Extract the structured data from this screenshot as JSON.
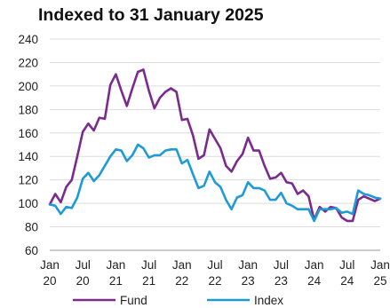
{
  "chart_data": {
    "type": "line",
    "title": "Indexed to 31 January 2025",
    "xlabel": "",
    "ylabel": "",
    "ylim": [
      60,
      240
    ],
    "yticks": [
      60,
      80,
      100,
      120,
      140,
      160,
      180,
      200,
      220,
      240
    ],
    "xlim": [
      "Jan 20",
      "Jan 25"
    ],
    "x_tick_labels": [
      {
        "top": "Jan",
        "bottom": "20"
      },
      {
        "top": "Jul",
        "bottom": "20"
      },
      {
        "top": "Jan",
        "bottom": "21"
      },
      {
        "top": "Jul",
        "bottom": "21"
      },
      {
        "top": "Jan",
        "bottom": "22"
      },
      {
        "top": "Jul",
        "bottom": "22"
      },
      {
        "top": "Jan",
        "bottom": "23"
      },
      {
        "top": "Jul",
        "bottom": "23"
      },
      {
        "top": "Jan",
        "bottom": "24"
      },
      {
        "top": "Jul",
        "bottom": "24"
      },
      {
        "top": "Jan",
        "bottom": "25"
      }
    ],
    "grid": {
      "horizontal": true,
      "vertical": false
    },
    "legend_position": "bottom",
    "x": [
      "Jan 20",
      "Feb 20",
      "Mar 20",
      "Apr 20",
      "May 20",
      "Jun 20",
      "Jul 20",
      "Aug 20",
      "Sep 20",
      "Oct 20",
      "Nov 20",
      "Dec 20",
      "Jan 21",
      "Feb 21",
      "Mar 21",
      "Apr 21",
      "May 21",
      "Jun 21",
      "Jul 21",
      "Aug 21",
      "Sep 21",
      "Oct 21",
      "Nov 21",
      "Dec 21",
      "Jan 22",
      "Feb 22",
      "Mar 22",
      "Apr 22",
      "May 22",
      "Jun 22",
      "Jul 22",
      "Aug 22",
      "Sep 22",
      "Oct 22",
      "Nov 22",
      "Dec 22",
      "Jan 23",
      "Feb 23",
      "Mar 23",
      "Apr 23",
      "May 23",
      "Jun 23",
      "Jul 23",
      "Aug 23",
      "Sep 23",
      "Oct 23",
      "Nov 23",
      "Dec 23",
      "Jan 24",
      "Feb 24",
      "Mar 24",
      "Apr 24",
      "May 24",
      "Jun 24",
      "Jul 24",
      "Aug 24",
      "Sep 24",
      "Oct 24",
      "Nov 24",
      "Dec 24",
      "Jan 25"
    ],
    "series": [
      {
        "name": "Fund",
        "color": "#7B2A8E",
        "values": [
          99,
          108,
          101,
          114,
          120,
          140,
          161,
          168,
          162,
          173,
          172,
          201,
          210,
          196,
          183,
          198,
          212,
          214,
          196,
          181,
          190,
          195,
          198,
          195,
          171,
          172,
          158,
          138,
          141,
          163,
          155,
          147,
          132,
          127,
          136,
          142,
          156,
          145,
          145,
          132,
          121,
          122,
          126,
          118,
          117,
          108,
          111,
          106,
          86,
          97,
          93,
          97,
          96,
          88,
          85,
          85,
          103,
          106,
          104,
          102,
          104
        ]
      },
      {
        "name": "Index",
        "color": "#1E9BD7",
        "values": [
          99,
          98,
          91,
          97,
          96,
          105,
          121,
          126,
          119,
          124,
          132,
          140,
          146,
          145,
          136,
          141,
          150,
          147,
          139,
          141,
          141,
          145,
          146,
          146,
          134,
          137,
          125,
          113,
          115,
          127,
          118,
          114,
          103,
          95,
          105,
          107,
          118,
          113,
          113,
          111,
          103,
          103,
          109,
          100,
          98,
          95,
          95,
          95,
          85,
          95,
          95,
          95,
          96,
          92,
          93,
          91,
          111,
          108,
          107,
          105,
          104
        ]
      }
    ]
  }
}
